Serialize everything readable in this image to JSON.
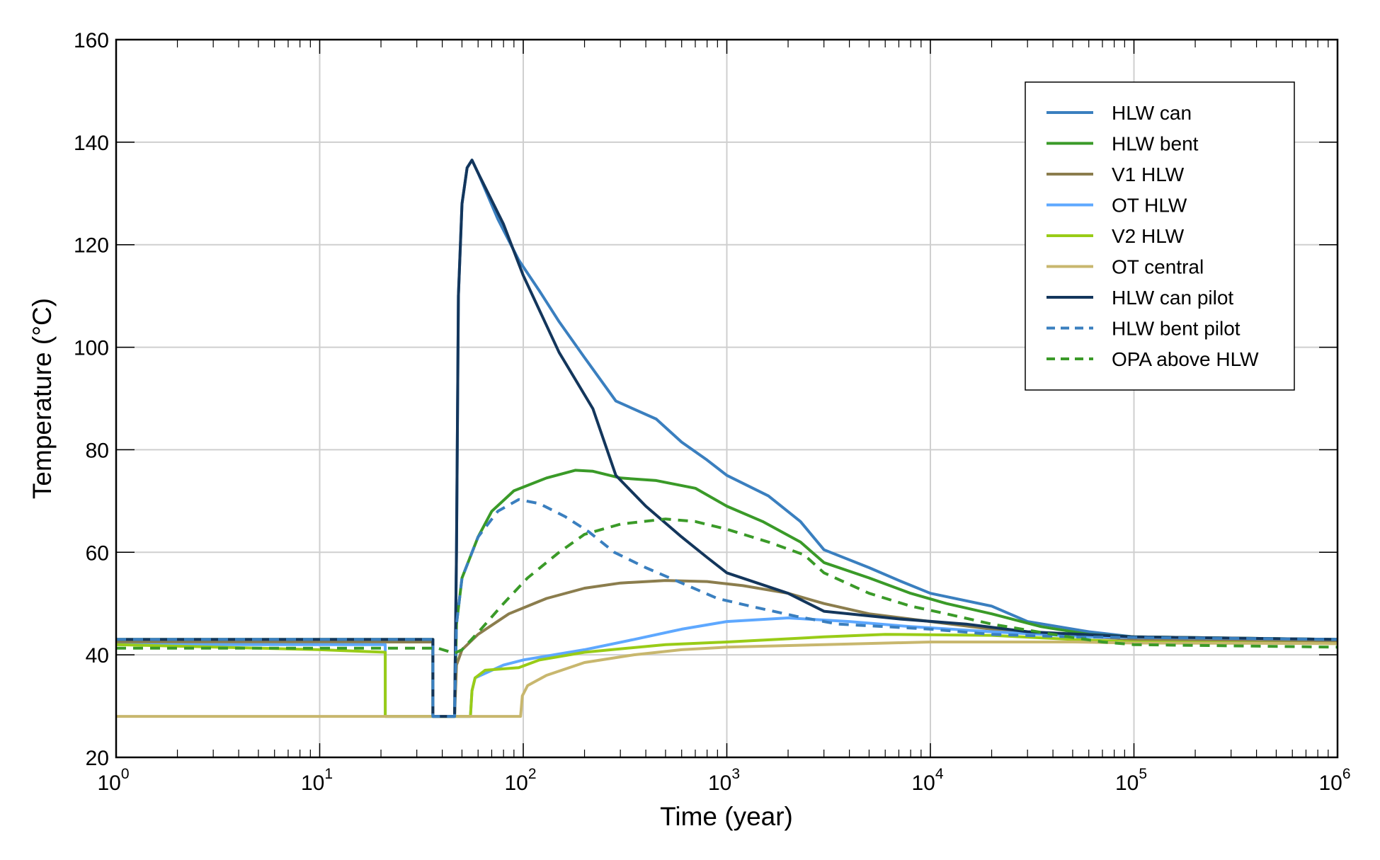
{
  "chart_data": {
    "type": "line",
    "title": "",
    "xlabel": "Time (year)",
    "ylabel": "Temperature (°C)",
    "xscale": "log",
    "xlim": [
      1,
      1000000
    ],
    "ylim": [
      20,
      160
    ],
    "grid": true,
    "legend_position": "top-right",
    "xticks": [
      {
        "value": 1,
        "base": "10",
        "exp": "0"
      },
      {
        "value": 10,
        "base": "10",
        "exp": "1"
      },
      {
        "value": 100,
        "base": "10",
        "exp": "2"
      },
      {
        "value": 1000,
        "base": "10",
        "exp": "3"
      },
      {
        "value": 10000,
        "base": "10",
        "exp": "4"
      },
      {
        "value": 100000,
        "base": "10",
        "exp": "5"
      },
      {
        "value": 1000000,
        "base": "10",
        "exp": "6"
      }
    ],
    "yticks": [
      20,
      40,
      60,
      80,
      100,
      120,
      140,
      160
    ],
    "series": [
      {
        "name": "HLW can",
        "color": "#3a7fbf",
        "dash": false,
        "points": [
          [
            1,
            43
          ],
          [
            36,
            43
          ],
          [
            36,
            28
          ],
          [
            46,
            28
          ],
          [
            47,
            60
          ],
          [
            48,
            110
          ],
          [
            50,
            128
          ],
          [
            53,
            135
          ],
          [
            56,
            136.5
          ],
          [
            60,
            134
          ],
          [
            75,
            125
          ],
          [
            95,
            117
          ],
          [
            120,
            111
          ],
          [
            150,
            105
          ],
          [
            200,
            98
          ],
          [
            285,
            89.5
          ],
          [
            450,
            86
          ],
          [
            600,
            81.5
          ],
          [
            800,
            78
          ],
          [
            1000,
            75
          ],
          [
            1600,
            71
          ],
          [
            2300,
            66
          ],
          [
            3000,
            60.5
          ],
          [
            5000,
            57
          ],
          [
            7000,
            54.5
          ],
          [
            10000,
            52
          ],
          [
            20000,
            49.5
          ],
          [
            30000,
            46.5
          ],
          [
            60000,
            44.5
          ],
          [
            100000,
            43.5
          ],
          [
            1000000,
            43
          ]
        ]
      },
      {
        "name": "HLW bent",
        "color": "#3a9a28",
        "dash": false,
        "points": [
          [
            1,
            43
          ],
          [
            36,
            43
          ],
          [
            36,
            28
          ],
          [
            46,
            28
          ],
          [
            47,
            46
          ],
          [
            50,
            55
          ],
          [
            60,
            63
          ],
          [
            70,
            68
          ],
          [
            90,
            72
          ],
          [
            130,
            74.5
          ],
          [
            180,
            76
          ],
          [
            220,
            75.8
          ],
          [
            300,
            74.5
          ],
          [
            450,
            74
          ],
          [
            700,
            72.5
          ],
          [
            1000,
            69
          ],
          [
            1500,
            66
          ],
          [
            2300,
            62
          ],
          [
            3000,
            58
          ],
          [
            5000,
            55
          ],
          [
            8000,
            52
          ],
          [
            12000,
            50
          ],
          [
            20000,
            48
          ],
          [
            35000,
            45.5
          ],
          [
            60000,
            44
          ],
          [
            100000,
            43.5
          ],
          [
            1000000,
            43
          ]
        ]
      },
      {
        "name": "V1 HLW",
        "color": "#8b7d4d",
        "dash": false,
        "points": [
          [
            1,
            42.5
          ],
          [
            36,
            42.5
          ],
          [
            36,
            28
          ],
          [
            46,
            28
          ],
          [
            47,
            38
          ],
          [
            50,
            41
          ],
          [
            60,
            44
          ],
          [
            85,
            48
          ],
          [
            130,
            51
          ],
          [
            200,
            53
          ],
          [
            300,
            54
          ],
          [
            500,
            54.5
          ],
          [
            800,
            54.3
          ],
          [
            1200,
            53.5
          ],
          [
            2000,
            52
          ],
          [
            3000,
            50
          ],
          [
            5000,
            48
          ],
          [
            10000,
            46.5
          ],
          [
            20000,
            45
          ],
          [
            40000,
            44
          ],
          [
            100000,
            43
          ],
          [
            1000000,
            42.5
          ]
        ]
      },
      {
        "name": "OT HLW",
        "color": "#5ea8ff",
        "dash": false,
        "points": [
          [
            1,
            42
          ],
          [
            21,
            42
          ],
          [
            21,
            28
          ],
          [
            55,
            28
          ],
          [
            56,
            33
          ],
          [
            58,
            35.5
          ],
          [
            80,
            38
          ],
          [
            100,
            39
          ],
          [
            200,
            41
          ],
          [
            350,
            43
          ],
          [
            600,
            45
          ],
          [
            1000,
            46.5
          ],
          [
            2000,
            47.2
          ],
          [
            4000,
            46.5
          ],
          [
            8000,
            45.5
          ],
          [
            20000,
            44.5
          ],
          [
            60000,
            43.5
          ],
          [
            1000000,
            43
          ]
        ]
      },
      {
        "name": "V2 HLW",
        "color": "#99cc17",
        "dash": false,
        "points": [
          [
            1,
            42
          ],
          [
            10,
            41
          ],
          [
            21,
            40.5
          ],
          [
            21,
            28
          ],
          [
            55,
            28
          ],
          [
            56,
            33
          ],
          [
            58,
            35.5
          ],
          [
            65,
            37
          ],
          [
            95,
            37.5
          ],
          [
            120,
            39
          ],
          [
            200,
            40.5
          ],
          [
            500,
            42
          ],
          [
            1000,
            42.5
          ],
          [
            3000,
            43.5
          ],
          [
            6000,
            44
          ],
          [
            20000,
            43.8
          ],
          [
            50000,
            43
          ],
          [
            100000,
            42.5
          ],
          [
            1000000,
            42.2
          ]
        ]
      },
      {
        "name": "OT central",
        "color": "#c8b76e",
        "dash": false,
        "points": [
          [
            1,
            28
          ],
          [
            97,
            28
          ],
          [
            99,
            32
          ],
          [
            105,
            34
          ],
          [
            130,
            36
          ],
          [
            200,
            38.5
          ],
          [
            350,
            40
          ],
          [
            600,
            41
          ],
          [
            1000,
            41.5
          ],
          [
            3000,
            42
          ],
          [
            10000,
            42.5
          ],
          [
            50000,
            42.5
          ],
          [
            100000,
            42.3
          ],
          [
            1000000,
            42.2
          ]
        ]
      },
      {
        "name": "HLW can pilot",
        "color": "#13365c",
        "dash": false,
        "points": [
          [
            1,
            43
          ],
          [
            36,
            43
          ],
          [
            36,
            28
          ],
          [
            46,
            28
          ],
          [
            47,
            60
          ],
          [
            48,
            110
          ],
          [
            50,
            128
          ],
          [
            53,
            135
          ],
          [
            56,
            136.5
          ],
          [
            60,
            134
          ],
          [
            80,
            124
          ],
          [
            100,
            114
          ],
          [
            150,
            99
          ],
          [
            220,
            88
          ],
          [
            285,
            75
          ],
          [
            400,
            69
          ],
          [
            600,
            63
          ],
          [
            800,
            59
          ],
          [
            1000,
            56
          ],
          [
            2000,
            52
          ],
          [
            3000,
            48.5
          ],
          [
            7000,
            47
          ],
          [
            15000,
            46
          ],
          [
            30000,
            44.5
          ],
          [
            100000,
            43.5
          ],
          [
            1000000,
            43
          ]
        ]
      },
      {
        "name": "HLW bent pilot",
        "color": "#3a7fbf",
        "dash": true,
        "points": [
          [
            1,
            43
          ],
          [
            36,
            43
          ],
          [
            36,
            28
          ],
          [
            46,
            28
          ],
          [
            47,
            46
          ],
          [
            50,
            55
          ],
          [
            60,
            63
          ],
          [
            75,
            68
          ],
          [
            95,
            70.3
          ],
          [
            120,
            69.5
          ],
          [
            160,
            67
          ],
          [
            210,
            64
          ],
          [
            280,
            60
          ],
          [
            400,
            57
          ],
          [
            600,
            54
          ],
          [
            900,
            51
          ],
          [
            1300,
            49.5
          ],
          [
            2200,
            47.5
          ],
          [
            3500,
            46
          ],
          [
            6000,
            45.5
          ],
          [
            10000,
            45
          ],
          [
            20000,
            44
          ],
          [
            50000,
            43.5
          ],
          [
            1000000,
            43
          ]
        ]
      },
      {
        "name": "OPA above HLW",
        "color": "#3a9a28",
        "dash": true,
        "points": [
          [
            1,
            41.3
          ],
          [
            38,
            41.3
          ],
          [
            46,
            40.3
          ],
          [
            50,
            41
          ],
          [
            62,
            45
          ],
          [
            80,
            50
          ],
          [
            105,
            55
          ],
          [
            150,
            60
          ],
          [
            200,
            63.5
          ],
          [
            300,
            65.5
          ],
          [
            500,
            66.5
          ],
          [
            700,
            66
          ],
          [
            1000,
            64.5
          ],
          [
            1600,
            62
          ],
          [
            2400,
            59.5
          ],
          [
            3000,
            56
          ],
          [
            5000,
            52
          ],
          [
            8000,
            49.5
          ],
          [
            12000,
            48
          ],
          [
            20000,
            46
          ],
          [
            40000,
            44
          ],
          [
            70000,
            42.5
          ],
          [
            100000,
            42
          ],
          [
            1000000,
            41.5
          ]
        ]
      }
    ]
  }
}
